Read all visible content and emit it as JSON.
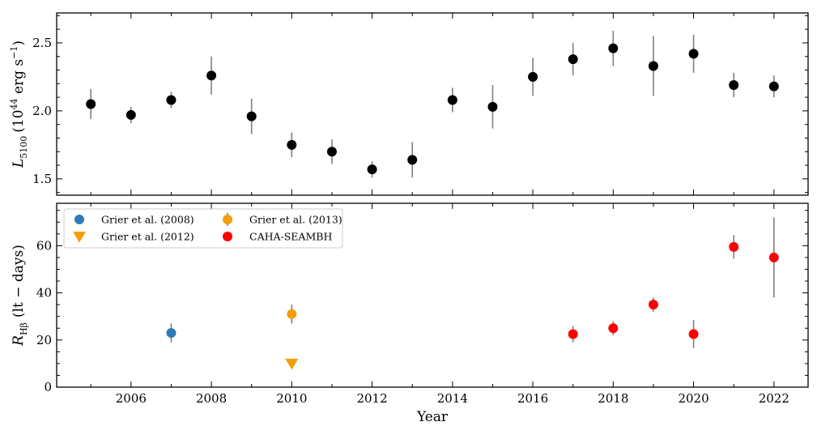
{
  "chart_data": [
    {
      "type": "scatter",
      "ylabel_main": "L",
      "ylabel_sub": "5100",
      "ylabel_units": "(10",
      "ylabel_exp": "44",
      "ylabel_units2": " erg s",
      "ylabel_exp2": "−1",
      "ylabel_close": ")",
      "ylim": [
        1.38,
        2.72
      ],
      "yticks": [
        1.5,
        2.0,
        2.5
      ],
      "ytick_labels": [
        "1.5",
        "2.0",
        "2.5"
      ],
      "xlim": [
        2004.15,
        2022.85
      ],
      "series": [
        {
          "color": "#000000",
          "marker": "circle",
          "points": [
            {
              "x": 2005,
              "y": 2.05,
              "err": 0.11
            },
            {
              "x": 2006,
              "y": 1.97,
              "err": 0.06
            },
            {
              "x": 2007,
              "y": 2.08,
              "err": 0.06
            },
            {
              "x": 2008,
              "y": 2.26,
              "err": 0.14
            },
            {
              "x": 2009,
              "y": 1.96,
              "err": 0.13
            },
            {
              "x": 2010,
              "y": 1.75,
              "err": 0.09
            },
            {
              "x": 2011,
              "y": 1.7,
              "err": 0.09
            },
            {
              "x": 2012,
              "y": 1.57,
              "err": 0.06
            },
            {
              "x": 2013,
              "y": 1.64,
              "err": 0.13
            },
            {
              "x": 2014,
              "y": 2.08,
              "err": 0.09
            },
            {
              "x": 2015,
              "y": 2.03,
              "err": 0.16
            },
            {
              "x": 2016,
              "y": 2.25,
              "err": 0.14
            },
            {
              "x": 2017,
              "y": 2.38,
              "err": 0.12
            },
            {
              "x": 2018,
              "y": 2.46,
              "err": 0.13
            },
            {
              "x": 2019,
              "y": 2.33,
              "err": 0.22
            },
            {
              "x": 2020,
              "y": 2.42,
              "err": 0.14
            },
            {
              "x": 2021,
              "y": 2.19,
              "err": 0.09
            },
            {
              "x": 2022,
              "y": 2.18,
              "err": 0.08
            }
          ]
        }
      ]
    },
    {
      "type": "scatter",
      "xlabel": "Year",
      "ylabel_main": "R",
      "ylabel_sub": "Hβ",
      "ylabel_units": "(lt − days)",
      "xlim": [
        2004.15,
        2022.85
      ],
      "xticks": [
        2006,
        2008,
        2010,
        2012,
        2014,
        2016,
        2018,
        2020,
        2022
      ],
      "xtick_labels": [
        "2006",
        "2008",
        "2010",
        "2012",
        "2014",
        "2016",
        "2018",
        "2020",
        "2022"
      ],
      "ylim": [
        0,
        78
      ],
      "yticks": [
        0,
        20,
        40,
        60
      ],
      "ytick_labels": [
        "0",
        "20",
        "40",
        "60"
      ],
      "legend": {
        "placement": "top-left",
        "items": [
          {
            "label": "Grier et al. (2008)",
            "color": "#2f7bb6",
            "marker": "circle"
          },
          {
            "label": "Grier et al. (2012)",
            "color": "#f59e0b",
            "marker": "triangle-down"
          },
          {
            "label": "Grier et al. (2013)",
            "color": "#f59e0b",
            "marker": "circle-errorbar"
          },
          {
            "label": "CAHA-SEAMBH",
            "color": "#ff0000",
            "marker": "circle"
          }
        ]
      },
      "series": [
        {
          "name": "Grier et al. (2008)",
          "color": "#2f7bb6",
          "marker": "circle",
          "points": [
            {
              "x": 2007,
              "y": 23,
              "err": 4
            }
          ]
        },
        {
          "name": "Grier et al. (2012)",
          "color": "#f59e0b",
          "marker": "triangle-down",
          "points": [
            {
              "x": 2010,
              "y": 10,
              "err": 0
            }
          ]
        },
        {
          "name": "Grier et al. (2013)",
          "color": "#f59e0b",
          "marker": "circle",
          "points": [
            {
              "x": 2010,
              "y": 31,
              "err": 4
            }
          ]
        },
        {
          "name": "CAHA-SEAMBH",
          "color": "#ff0000",
          "marker": "circle",
          "points": [
            {
              "x": 2017,
              "y": 22.5,
              "err": 3.5
            },
            {
              "x": 2018,
              "y": 25,
              "err": 3
            },
            {
              "x": 2019,
              "y": 35,
              "err": 3
            },
            {
              "x": 2020,
              "y": 22.5,
              "err": 6
            },
            {
              "x": 2021,
              "y": 59.5,
              "err": 5
            },
            {
              "x": 2022,
              "y": 55,
              "err": 17
            }
          ]
        }
      ]
    }
  ]
}
